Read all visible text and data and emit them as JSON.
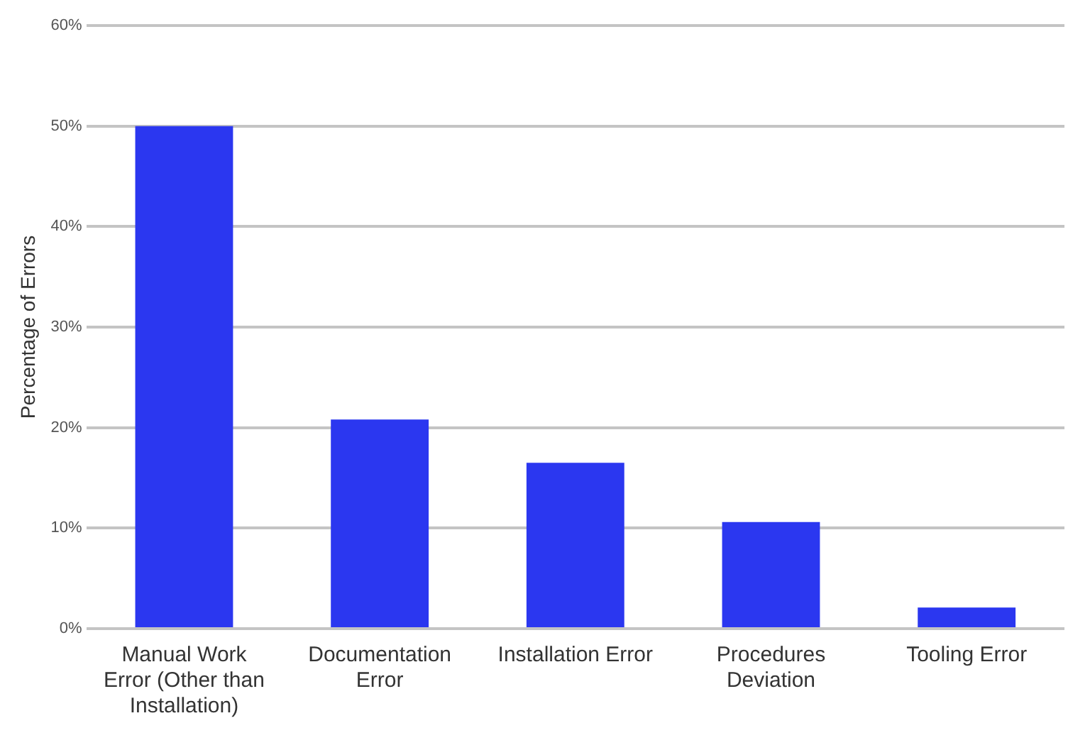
{
  "chart_data": {
    "type": "bar",
    "ylabel": "Percentage of Errors",
    "categories": [
      "Manual Work Error (Other than Installation)",
      "Documentation Error",
      "Installation Error",
      "Procedures Deviation",
      "Tooling Error"
    ],
    "values": [
      50,
      20.8,
      16.5,
      10.6,
      2.1
    ],
    "color": "#2b37f0",
    "ylim": [
      0,
      60
    ],
    "yticks": [
      {
        "value": 0,
        "label": "0%"
      },
      {
        "value": 10,
        "label": "10%"
      },
      {
        "value": 20,
        "label": "20%"
      },
      {
        "value": 30,
        "label": "30%"
      },
      {
        "value": 40,
        "label": "40%"
      },
      {
        "value": 50,
        "label": "50%"
      },
      {
        "value": 60,
        "label": "60%"
      }
    ],
    "grid": "y",
    "legend": false
  }
}
